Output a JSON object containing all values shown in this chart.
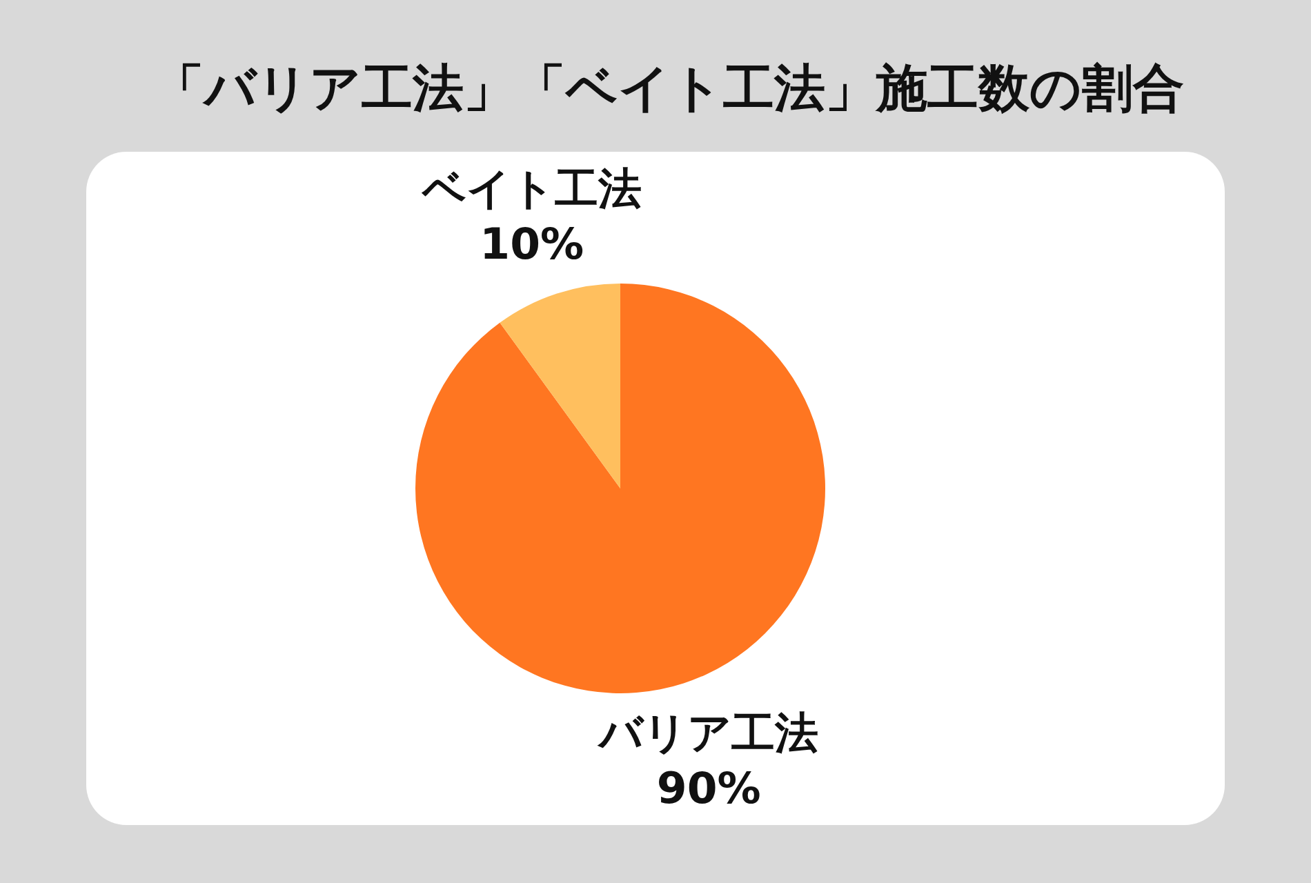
{
  "chart_data": {
    "type": "pie",
    "title": "「バリア工法」「ベイト工法」施工数の割合",
    "categories": [
      "バリア工法",
      "ベイト工法"
    ],
    "values": [
      90,
      10
    ],
    "colors": [
      "#ff7621",
      "#ffbf5e"
    ],
    "value_labels": [
      "90%",
      "10%"
    ]
  }
}
